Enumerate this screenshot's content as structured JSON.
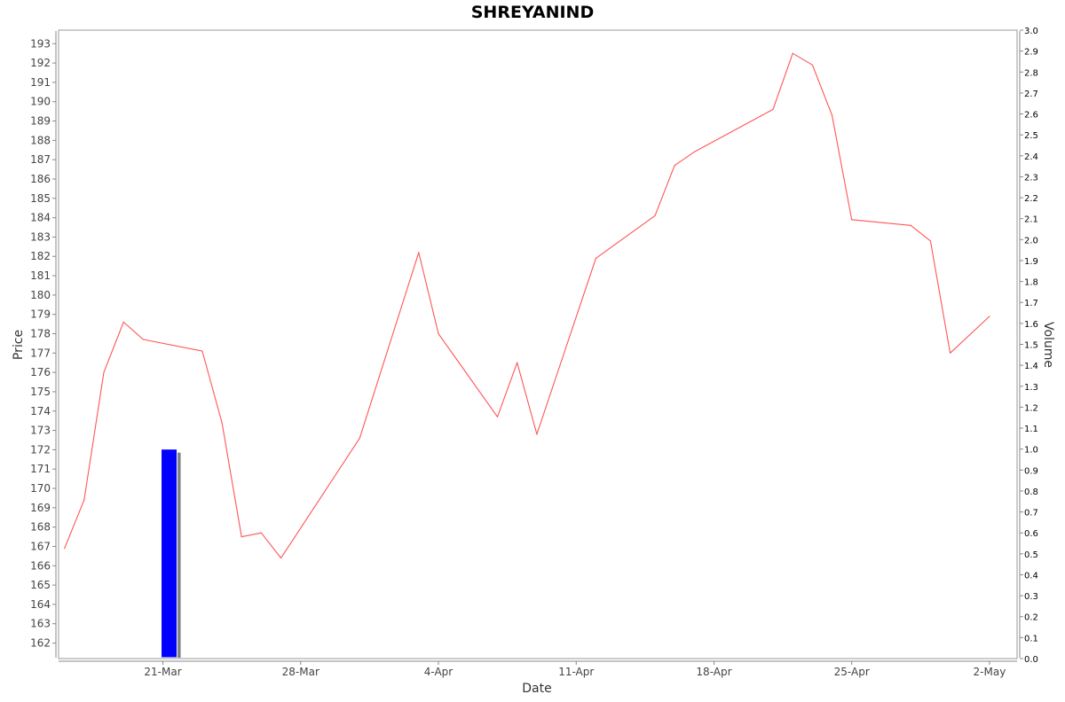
{
  "chart_data": {
    "type": "line",
    "title": "SHREYANIND",
    "xlabel": "Date",
    "ylabel": "Price",
    "y2label": "Volume",
    "ylim": [
      161.2,
      193.7
    ],
    "y2lim": [
      0.0,
      3.0
    ],
    "yticks": [
      162,
      163,
      164,
      165,
      166,
      167,
      168,
      169,
      170,
      171,
      172,
      173,
      174,
      175,
      176,
      177,
      178,
      179,
      180,
      181,
      182,
      183,
      184,
      185,
      186,
      187,
      188,
      189,
      190,
      191,
      192,
      193
    ],
    "y2ticks": [
      "0.0",
      "0.1",
      "0.2",
      "0.3",
      "0.4",
      "0.5",
      "0.6",
      "0.7",
      "0.8",
      "0.9",
      "1.0",
      "1.1",
      "1.2",
      "1.3",
      "1.4",
      "1.5",
      "1.6",
      "1.7",
      "1.8",
      "1.9",
      "2.0",
      "2.1",
      "2.2",
      "2.3",
      "2.4",
      "2.5",
      "2.6",
      "2.7",
      "2.8",
      "2.9",
      "3.0"
    ],
    "xticks": [
      {
        "label": "21-Mar",
        "day": 21
      },
      {
        "label": "28-Mar",
        "day": 28
      },
      {
        "label": "4-Apr",
        "day": 35
      },
      {
        "label": "11-Apr",
        "day": 42
      },
      {
        "label": "18-Apr",
        "day": 49
      },
      {
        "label": "25-Apr",
        "day": 56
      },
      {
        "label": "2-May",
        "day": 63
      }
    ],
    "xlim_day": [
      15.7,
      64.4
    ],
    "price_color": "#ff5555",
    "volume_color": "#0000ff",
    "volume_shadow_color": "#808080",
    "grid": false,
    "series": [
      {
        "role": "price",
        "x": [
          "16-Mar",
          "17-Mar",
          "18-Mar",
          "19-Mar",
          "20-Mar",
          "23-Mar",
          "24-Mar",
          "25-Mar",
          "26-Mar",
          "27-Mar",
          "31-Mar",
          "3-Apr",
          "4-Apr",
          "7-Apr",
          "8-Apr",
          "9-Apr",
          "13-Apr",
          "15-Apr",
          "16-Apr",
          "17-Apr",
          "21-Apr",
          "22-Apr",
          "23-Apr",
          "24-Apr",
          "25-Apr",
          "28-Apr",
          "29-Apr",
          "30-Apr",
          "2-May"
        ],
        "day": [
          16,
          17,
          18,
          19,
          20,
          23,
          24,
          25,
          26,
          27,
          31,
          34,
          35,
          38,
          39,
          40,
          43,
          46,
          47,
          48,
          52,
          53,
          54,
          55,
          56,
          59,
          60,
          61,
          63
        ],
        "values": [
          166.9,
          169.4,
          176.0,
          178.6,
          177.7,
          177.1,
          173.4,
          167.5,
          167.7,
          166.4,
          172.6,
          182.2,
          178.0,
          173.7,
          176.5,
          172.8,
          181.9,
          184.1,
          186.7,
          187.4,
          189.6,
          192.5,
          191.9,
          189.3,
          183.9,
          183.6,
          182.8,
          177.0,
          178.9
        ]
      },
      {
        "role": "volume",
        "x": [
          "21-Mar"
        ],
        "day": [
          21
        ],
        "values": [
          1.0
        ]
      }
    ]
  }
}
